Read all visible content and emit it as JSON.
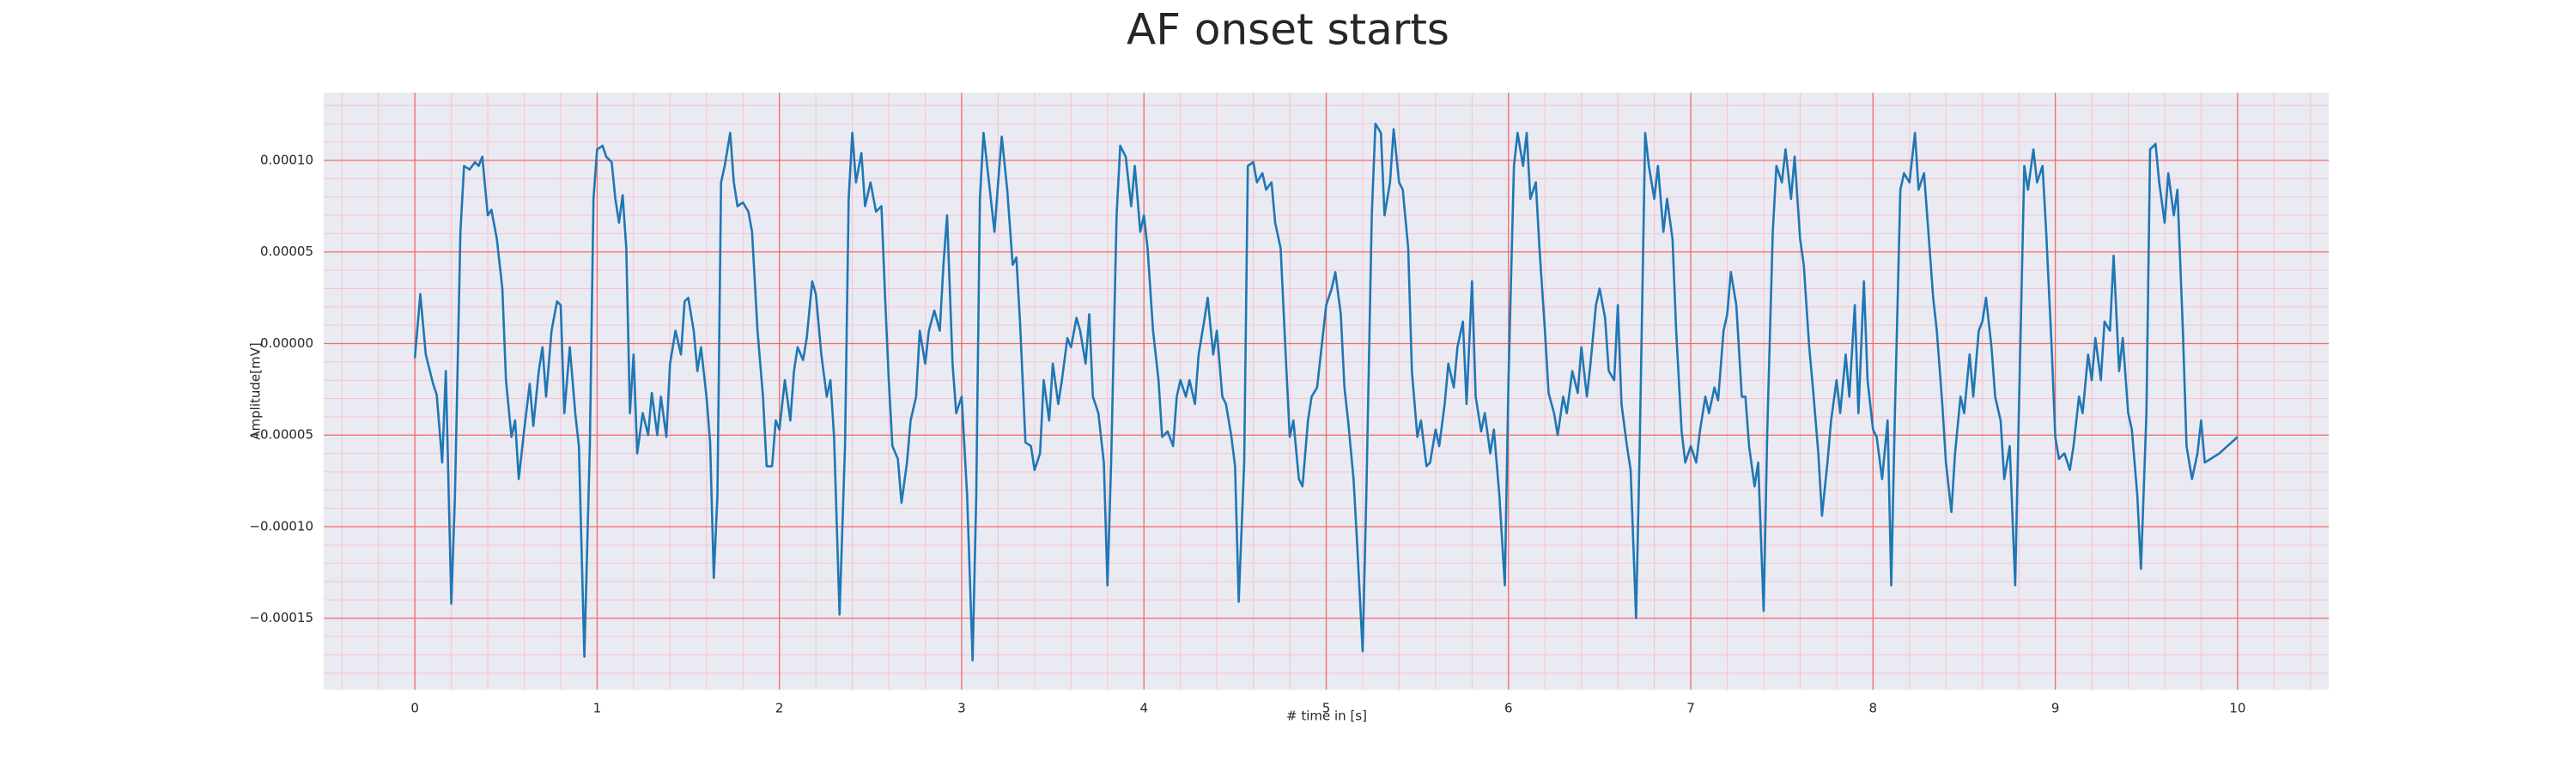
{
  "chart_data": {
    "type": "line",
    "title": "AF onset starts",
    "xlabel": "# time in [s]",
    "ylabel": "Amplitude[mV]",
    "color": "#1f77b4",
    "background": "#eaeaf2",
    "grid": true,
    "grid_color": "#f26b6b",
    "minor_grid": {
      "x": 0.2,
      "y": 1e-05,
      "color": "#f6c3cf"
    },
    "xlim": [
      -0.5,
      10.5
    ],
    "xticks": [
      0,
      1,
      2,
      3,
      4,
      5,
      6,
      7,
      8,
      9,
      10
    ],
    "ylim": [
      -0.000189,
      0.000137
    ],
    "yticks": [
      {
        "value": -0.00015,
        "label": "−0.00015"
      },
      {
        "value": -0.0001,
        "label": "−0.00010"
      },
      {
        "value": -5e-05,
        "label": "−0.00005"
      },
      {
        "value": 0,
        "label": "0.00000"
      },
      {
        "value": 5e-05,
        "label": "0.00005"
      },
      {
        "value": 0.0001,
        "label": "0.00010"
      }
    ],
    "x": [
      0,
      0.03,
      0.06,
      0.1,
      0.12,
      0.15,
      0.17,
      0.2,
      0.22,
      0.25,
      0.27,
      0.3,
      0.33,
      0.35,
      0.37,
      0.4,
      0.42,
      0.45,
      0.48,
      0.5,
      0.53,
      0.55,
      0.57,
      0.6,
      0.63,
      0.65,
      0.68,
      0.7,
      0.72,
      0.75,
      0.78,
      0.8,
      0.82,
      0.85,
      0.88,
      0.9,
      0.93,
      0.96,
      0.98,
      1.0,
      1.03,
      1.05,
      1.08,
      1.1,
      1.12,
      1.14,
      1.16,
      1.18,
      1.2,
      1.22,
      1.25,
      1.28,
      1.3,
      1.33,
      1.35,
      1.38,
      1.4,
      1.43,
      1.46,
      1.48,
      1.5,
      1.53,
      1.55,
      1.57,
      1.6,
      1.62,
      1.64,
      1.66,
      1.68,
      1.7,
      1.73,
      1.75,
      1.77,
      1.8,
      1.83,
      1.85,
      1.88,
      1.91,
      1.93,
      1.96,
      1.98,
      2.0,
      2.03,
      2.06,
      2.08,
      2.1,
      2.13,
      2.15,
      2.18,
      2.2,
      2.23,
      2.26,
      2.28,
      2.3,
      2.33,
      2.36,
      2.38,
      2.4,
      2.42,
      2.45,
      2.47,
      2.5,
      2.53,
      2.56,
      2.58,
      2.6,
      2.62,
      2.65,
      2.67,
      2.7,
      2.72,
      2.75,
      2.77,
      2.8,
      2.82,
      2.85,
      2.88,
      2.9,
      2.92,
      2.95,
      2.97,
      3.0,
      3.03,
      3.06,
      3.08,
      3.1,
      3.12,
      3.15,
      3.18,
      3.2,
      3.22,
      3.25,
      3.28,
      3.3,
      3.32,
      3.35,
      3.38,
      3.4,
      3.43,
      3.45,
      3.48,
      3.5,
      3.53,
      3.55,
      3.58,
      3.6,
      3.63,
      3.65,
      3.68,
      3.7,
      3.72,
      3.75,
      3.78,
      3.8,
      3.82,
      3.85,
      3.87,
      3.9,
      3.93,
      3.95,
      3.98,
      4.0,
      4.02,
      4.05,
      4.08,
      4.1,
      4.13,
      4.16,
      4.18,
      4.2,
      4.23,
      4.25,
      4.28,
      4.3,
      4.33,
      4.35,
      4.38,
      4.4,
      4.43,
      4.45,
      4.48,
      4.5,
      4.52,
      4.55,
      4.57,
      4.6,
      4.62,
      4.65,
      4.67,
      4.7,
      4.72,
      4.75,
      4.78,
      4.8,
      4.82,
      4.85,
      4.87,
      4.9,
      4.92,
      4.95,
      4.97,
      5.0,
      5.03,
      5.05,
      5.08,
      5.1,
      5.12,
      5.15,
      5.17,
      5.2,
      5.22,
      5.25,
      5.27,
      5.3,
      5.32,
      5.35,
      5.37,
      5.4,
      5.42,
      5.45,
      5.47,
      5.5,
      5.52,
      5.55,
      5.57,
      5.6,
      5.62,
      5.65,
      5.67,
      5.7,
      5.72,
      5.75,
      5.77,
      5.8,
      5.82,
      5.85,
      5.87,
      5.9,
      5.92,
      5.95,
      5.98,
      6.0,
      6.03,
      6.05,
      6.08,
      6.1,
      6.12,
      6.15,
      6.17,
      6.2,
      6.22,
      6.25,
      6.27,
      6.3,
      6.32,
      6.35,
      6.38,
      6.4,
      6.43,
      6.45,
      6.48,
      6.5,
      6.53,
      6.55,
      6.58,
      6.6,
      6.62,
      6.65,
      6.67,
      6.7,
      6.72,
      6.75,
      6.77,
      6.8,
      6.82,
      6.85,
      6.87,
      6.9,
      6.92,
      6.95,
      6.97,
      7.0,
      7.03,
      7.05,
      7.08,
      7.1,
      7.13,
      7.15,
      7.18,
      7.2,
      7.22,
      7.25,
      7.28,
      7.3,
      7.32,
      7.35,
      7.37,
      7.4,
      7.42,
      7.45,
      7.47,
      7.5,
      7.52,
      7.55,
      7.57,
      7.6,
      7.62,
      7.65,
      7.67,
      7.7,
      7.72,
      7.75,
      7.77,
      7.8,
      7.82,
      7.85,
      7.87,
      7.9,
      7.92,
      7.95,
      7.97,
      8.0,
      8.02,
      8.05,
      8.08,
      8.1,
      8.12,
      8.15,
      8.17,
      8.2,
      8.23,
      8.25,
      8.28,
      8.3,
      8.33,
      8.35,
      8.38,
      8.4,
      8.43,
      8.45,
      8.48,
      8.5,
      8.53,
      8.55,
      8.58,
      8.6,
      8.62,
      8.65,
      8.67,
      8.7,
      8.72,
      8.75,
      8.78,
      8.8,
      8.83,
      8.85,
      8.88,
      8.9,
      8.93,
      8.95,
      8.98,
      9.0,
      9.02,
      9.05,
      9.08,
      9.1,
      9.13,
      9.15,
      9.18,
      9.2,
      9.22,
      9.25,
      9.27,
      9.3,
      9.32,
      9.35,
      9.37,
      9.4,
      9.42,
      9.45,
      9.47,
      9.5,
      9.52,
      9.55,
      9.57,
      9.6,
      9.62,
      9.65,
      9.67,
      9.7,
      9.72,
      9.75,
      9.78,
      9.8,
      9.82,
      9.9,
      10.0
    ],
    "values": [
      -8e-06,
      2.7e-05,
      -6e-06,
      -2.2e-05,
      -2.8e-05,
      -6.5e-05,
      -1.5e-05,
      -0.000142,
      -8.3e-05,
      6.1e-05,
      9.7e-05,
      9.5e-05,
      9.9e-05,
      9.7e-05,
      0.000102,
      7e-05,
      7.3e-05,
      5.7e-05,
      3e-05,
      -2e-05,
      -5.1e-05,
      -4.2e-05,
      -7.4e-05,
      -4.7e-05,
      -2.2e-05,
      -4.5e-05,
      -1.5e-05,
      -2e-06,
      -2.9e-05,
      7e-06,
      2.3e-05,
      2.1e-05,
      -3.8e-05,
      -2e-06,
      -3.8e-05,
      -5.6e-05,
      -0.000171,
      -5.6e-05,
      7.9e-05,
      0.000106,
      0.000108,
      0.000102,
      9.9e-05,
      7.9e-05,
      6.6e-05,
      8.1e-05,
      5.2e-05,
      -3.8e-05,
      -6e-06,
      -6e-05,
      -3.8e-05,
      -5e-05,
      -2.7e-05,
      -5e-05,
      -2.9e-05,
      -5.1e-05,
      -1.1e-05,
      7e-06,
      -6e-06,
      2.3e-05,
      2.5e-05,
      7e-06,
      -1.5e-05,
      -2e-06,
      -2.9e-05,
      -5.4e-05,
      -0.000128,
      -8.3e-05,
      8.8e-05,
      9.7e-05,
      0.000115,
      8.8e-05,
      7.5e-05,
      7.7e-05,
      7.2e-05,
      6.1e-05,
      7e-06,
      -2.9e-05,
      -6.7e-05,
      -6.7e-05,
      -4.2e-05,
      -4.7e-05,
      -2e-05,
      -4.2e-05,
      -1.5e-05,
      -2e-06,
      -9e-06,
      3e-06,
      3.4e-05,
      2.7e-05,
      -6e-06,
      -2.9e-05,
      -2e-05,
      -5.1e-05,
      -0.000148,
      -5.6e-05,
      7.9e-05,
      0.000115,
      8.8e-05,
      0.000104,
      7.5e-05,
      8.8e-05,
      7.2e-05,
      7.5e-05,
      2.5e-05,
      -2e-05,
      -5.6e-05,
      -6.3e-05,
      -8.7e-05,
      -6.5e-05,
      -4.2e-05,
      -2.9e-05,
      7e-06,
      -1.1e-05,
      7e-06,
      1.8e-05,
      7e-06,
      4.3e-05,
      7e-05,
      -1.1e-05,
      -3.8e-05,
      -2.9e-05,
      -8.3e-05,
      -0.000173,
      -8.3e-05,
      7.9e-05,
      0.000115,
      8.8e-05,
      6.1e-05,
      8.8e-05,
      0.000113,
      8.4e-05,
      4.3e-05,
      4.7e-05,
      1.2e-05,
      -5.4e-05,
      -5.6e-05,
      -6.9e-05,
      -6e-05,
      -2e-05,
      -4.2e-05,
      -1.1e-05,
      -3.3e-05,
      -2e-05,
      3e-06,
      -2e-06,
      1.4e-05,
      7e-06,
      -1.1e-05,
      1.6e-05,
      -2.9e-05,
      -3.8e-05,
      -6.5e-05,
      -0.000132,
      -6.5e-05,
      7e-05,
      0.000108,
      0.000102,
      7.5e-05,
      9.7e-05,
      6.1e-05,
      7e-05,
      5.2e-05,
      7e-06,
      -2e-05,
      -5.1e-05,
      -4.8e-05,
      -5.6e-05,
      -2.9e-05,
      -2e-05,
      -2.9e-05,
      -2e-05,
      -3.3e-05,
      -6e-06,
      1.2e-05,
      2.5e-05,
      -6e-06,
      7e-06,
      -2.9e-05,
      -3.3e-05,
      -5.1e-05,
      -6.7e-05,
      -0.000141,
      -6.5e-05,
      9.7e-05,
      9.9e-05,
      8.8e-05,
      9.3e-05,
      8.4e-05,
      8.8e-05,
      6.6e-05,
      5.2e-05,
      -1.1e-05,
      -5.1e-05,
      -4.2e-05,
      -7.4e-05,
      -7.8e-05,
      -4.2e-05,
      -2.9e-05,
      -2.4e-05,
      -6e-06,
      2.1e-05,
      3e-05,
      3.9e-05,
      1.6e-05,
      -2.4e-05,
      -4.2e-05,
      -7.4e-05,
      -0.00011,
      -0.000168,
      -8.3e-05,
      7e-05,
      0.00012,
      0.000115,
      7e-05,
      8.8e-05,
      0.000117,
      8.8e-05,
      8.4e-05,
      5.2e-05,
      -1.5e-05,
      -5.1e-05,
      -4.2e-05,
      -6.7e-05,
      -6.5e-05,
      -4.7e-05,
      -5.6e-05,
      -3.3e-05,
      -1.1e-05,
      -2.4e-05,
      -2e-06,
      1.2e-05,
      -3.3e-05,
      3.4e-05,
      -2.9e-05,
      -4.8e-05,
      -3.8e-05,
      -6e-05,
      -4.7e-05,
      -8.3e-05,
      -0.000132,
      -2e-05,
      9.7e-05,
      0.000115,
      9.7e-05,
      0.000115,
      7.9e-05,
      8.8e-05,
      5.2e-05,
      7e-06,
      -2.7e-05,
      -3.8e-05,
      -5e-05,
      -2.9e-05,
      -3.8e-05,
      -1.5e-05,
      -2.7e-05,
      -2e-06,
      -2.9e-05,
      -1.1e-05,
      2.1e-05,
      3e-05,
      1.4e-05,
      -1.5e-05,
      -2e-05,
      2.1e-05,
      -3.3e-05,
      -5.6e-05,
      -6.9e-05,
      -0.00015,
      -5.6e-05,
      0.000115,
      9.7e-05,
      7.9e-05,
      9.7e-05,
      6.1e-05,
      7.9e-05,
      5.7e-05,
      7e-06,
      -4.8e-05,
      -6.5e-05,
      -5.6e-05,
      -6.5e-05,
      -4.8e-05,
      -2.9e-05,
      -3.8e-05,
      -2.4e-05,
      -3.1e-05,
      7e-06,
      1.6e-05,
      3.9e-05,
      2.1e-05,
      -2.9e-05,
      -2.9e-05,
      -5.6e-05,
      -7.8e-05,
      -6.5e-05,
      -0.000146,
      -4.7e-05,
      6.1e-05,
      9.7e-05,
      8.8e-05,
      0.000106,
      7.9e-05,
      0.000102,
      5.7e-05,
      4.3e-05,
      -2e-06,
      -2.4e-05,
      -6e-05,
      -9.4e-05,
      -6.5e-05,
      -4.2e-05,
      -2e-05,
      -3.8e-05,
      -6e-06,
      -2.9e-05,
      2.1e-05,
      -3.8e-05,
      3.4e-05,
      -2e-05,
      -4.7e-05,
      -5.1e-05,
      -7.4e-05,
      -4.2e-05,
      -0.000132,
      -3.8e-05,
      8.4e-05,
      9.3e-05,
      8.8e-05,
      0.000115,
      8.4e-05,
      9.3e-05,
      6.6e-05,
      2.5e-05,
      7e-06,
      -3.3e-05,
      -6.5e-05,
      -9.2e-05,
      -6e-05,
      -2.9e-05,
      -3.8e-05,
      -6e-06,
      -2.9e-05,
      7e-06,
      1.2e-05,
      2.5e-05,
      -2e-06,
      -2.9e-05,
      -4.2e-05,
      -7.4e-05,
      -5.6e-05,
      -0.000132,
      -3.8e-05,
      9.7e-05,
      8.4e-05,
      0.000106,
      8.8e-05,
      9.7e-05,
      6.1e-05,
      -2e-06,
      -5.1e-05,
      -6.3e-05,
      -6e-05,
      -6.9e-05,
      -5.6e-05,
      -2.9e-05,
      -3.8e-05,
      -6e-06,
      -2e-05,
      3e-06,
      -2e-05,
      1.2e-05,
      7e-06,
      4.8e-05,
      -1.5e-05,
      3e-06,
      -3.8e-05,
      -4.7e-05,
      -8.3e-05,
      -0.000123,
      -3.8e-05,
      0.000106,
      0.000109,
      8.8e-05,
      6.6e-05,
      9.3e-05,
      7e-05,
      8.4e-05,
      7e-06,
      -5.6e-05,
      -7.4e-05,
      -6e-05,
      -4.2e-05,
      -6.5e-05,
      -6e-05,
      -5.1e-05
    ]
  }
}
